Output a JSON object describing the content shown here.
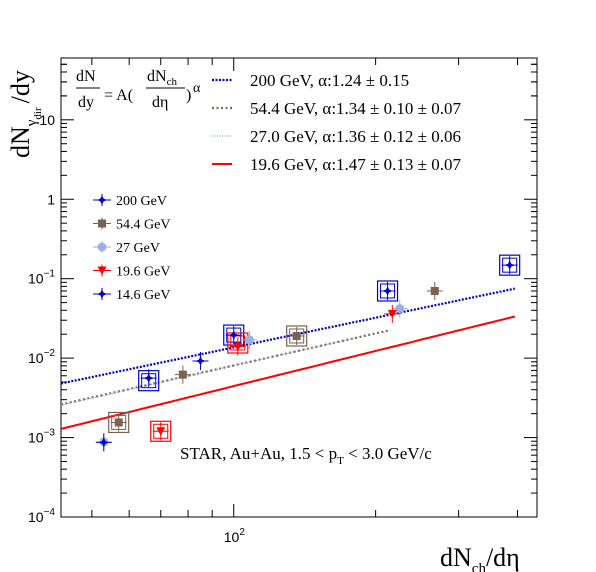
{
  "chart_data": {
    "type": "scatter",
    "x_scale": "log",
    "y_scale": "log",
    "xlim": [
      43,
      440
    ],
    "ylim": [
      0.0001,
      60
    ],
    "xlabel_main": "dN",
    "xlabel_sub": "ch",
    "xlabel_tail": "/dη",
    "ylabel_main": "dN",
    "ylabel_sub1": "γ",
    "ylabel_sub2": "dir",
    "ylabel_tail": "/dy",
    "x_ticks": [
      {
        "value": 100,
        "base": "10",
        "exp": "2"
      }
    ],
    "y_ticks": [
      {
        "value": 0.0001,
        "base": "10",
        "exp": "−4"
      },
      {
        "value": 0.001,
        "base": "10",
        "exp": "−3"
      },
      {
        "value": 0.01,
        "base": "10",
        "exp": "−2"
      },
      {
        "value": 0.1,
        "base": "10",
        "exp": "−1"
      },
      {
        "value": 1,
        "base": "1",
        "exp": ""
      },
      {
        "value": 10,
        "base": "10",
        "exp": ""
      }
    ],
    "formula": {
      "lhs_num": "dN",
      "lhs_den": "dy",
      "eq": "= A(",
      "rhs_num_main": "dN",
      "rhs_num_sub": "ch",
      "rhs_den": "dη",
      "close": ")",
      "exp": "α"
    },
    "fits": [
      {
        "name": "200  GeV, α:1.24 ± 0.15",
        "color": "#0000cc",
        "style": "dense-dot",
        "A": 4.52e-05,
        "alpha": 1.24,
        "x_range": [
          43,
          395
        ]
      },
      {
        "name": "54.4 GeV, α:1.34 ± 0.10 ± 0.07",
        "color": "#7a6a5a",
        "style": "dot",
        "A": 1.69e-05,
        "alpha": 1.34,
        "x_range": [
          43,
          215
        ]
      },
      {
        "name": "27.0 GeV, α:1.36 ± 0.12 ± 0.06",
        "color": "#8aa0c8",
        "style": "fine-dot",
        "A": 1.53e-05,
        "alpha": 1.36,
        "x_range": [
          43,
          180
        ]
      },
      {
        "name": "19.6 GeV, α:1.47 ± 0.13 ± 0.07",
        "color": "#ff0000",
        "style": "solid",
        "A": 5.1e-06,
        "alpha": 1.47,
        "x_range": [
          43,
          395
        ]
      }
    ],
    "series": [
      {
        "name": "200 GeV",
        "color": "#0000cc",
        "marker": "star",
        "points": [
          {
            "x": 85,
            "y": 0.0092
          },
          {
            "x": 212,
            "y": 0.07
          },
          {
            "x": 385,
            "y": 0.148
          }
        ]
      },
      {
        "name": "54.4 GeV",
        "color": "#7a6151",
        "marker": "square",
        "points": [
          {
            "x": 57,
            "y": 0.00155
          },
          {
            "x": 78,
            "y": 0.0062
          },
          {
            "x": 136,
            "y": 0.019
          },
          {
            "x": 267,
            "y": 0.07
          }
        ]
      },
      {
        "name": "27 GeV",
        "color": "#99b2e5",
        "marker": "circle",
        "points": [
          {
            "x": 53,
            "y": 0.00088
          },
          {
            "x": 108,
            "y": 0.017
          },
          {
            "x": 225,
            "y": 0.042
          }
        ]
      },
      {
        "name": "19.6 GeV",
        "color": "#ff0000",
        "marker": "triangle-down",
        "points": [
          {
            "x": 70,
            "y": 0.0012
          },
          {
            "x": 102,
            "y": 0.014
          },
          {
            "x": 217,
            "y": 0.036
          }
        ]
      },
      {
        "name": "14.6 GeV",
        "color": "#0000cc",
        "marker": "star",
        "points": [
          {
            "x": 53,
            "y": 0.00087
          },
          {
            "x": 66,
            "y": 0.0056
          },
          {
            "x": 100,
            "y": 0.0195
          }
        ]
      }
    ],
    "sys_boxes": [
      {
        "x": 385,
        "y": 0.148,
        "color": "#0000cc"
      },
      {
        "x": 212,
        "y": 0.07,
        "color": "#0000cc"
      },
      {
        "x": 100,
        "y": 0.0195,
        "color": "#0000cc"
      },
      {
        "x": 66,
        "y": 0.0052,
        "color": "#0000cc"
      },
      {
        "x": 57,
        "y": 0.00155,
        "color": "#7a6151"
      },
      {
        "x": 70,
        "y": 0.0012,
        "color": "#ff0000"
      },
      {
        "x": 136,
        "y": 0.019,
        "color": "#7a6151"
      },
      {
        "x": 102,
        "y": 0.0155,
        "color": "#ff0000"
      }
    ],
    "annotation": {
      "pre": "STAR, Au+Au, 1.5 < p",
      "sub": "T",
      "post": " < 3.0 GeV/c"
    }
  }
}
